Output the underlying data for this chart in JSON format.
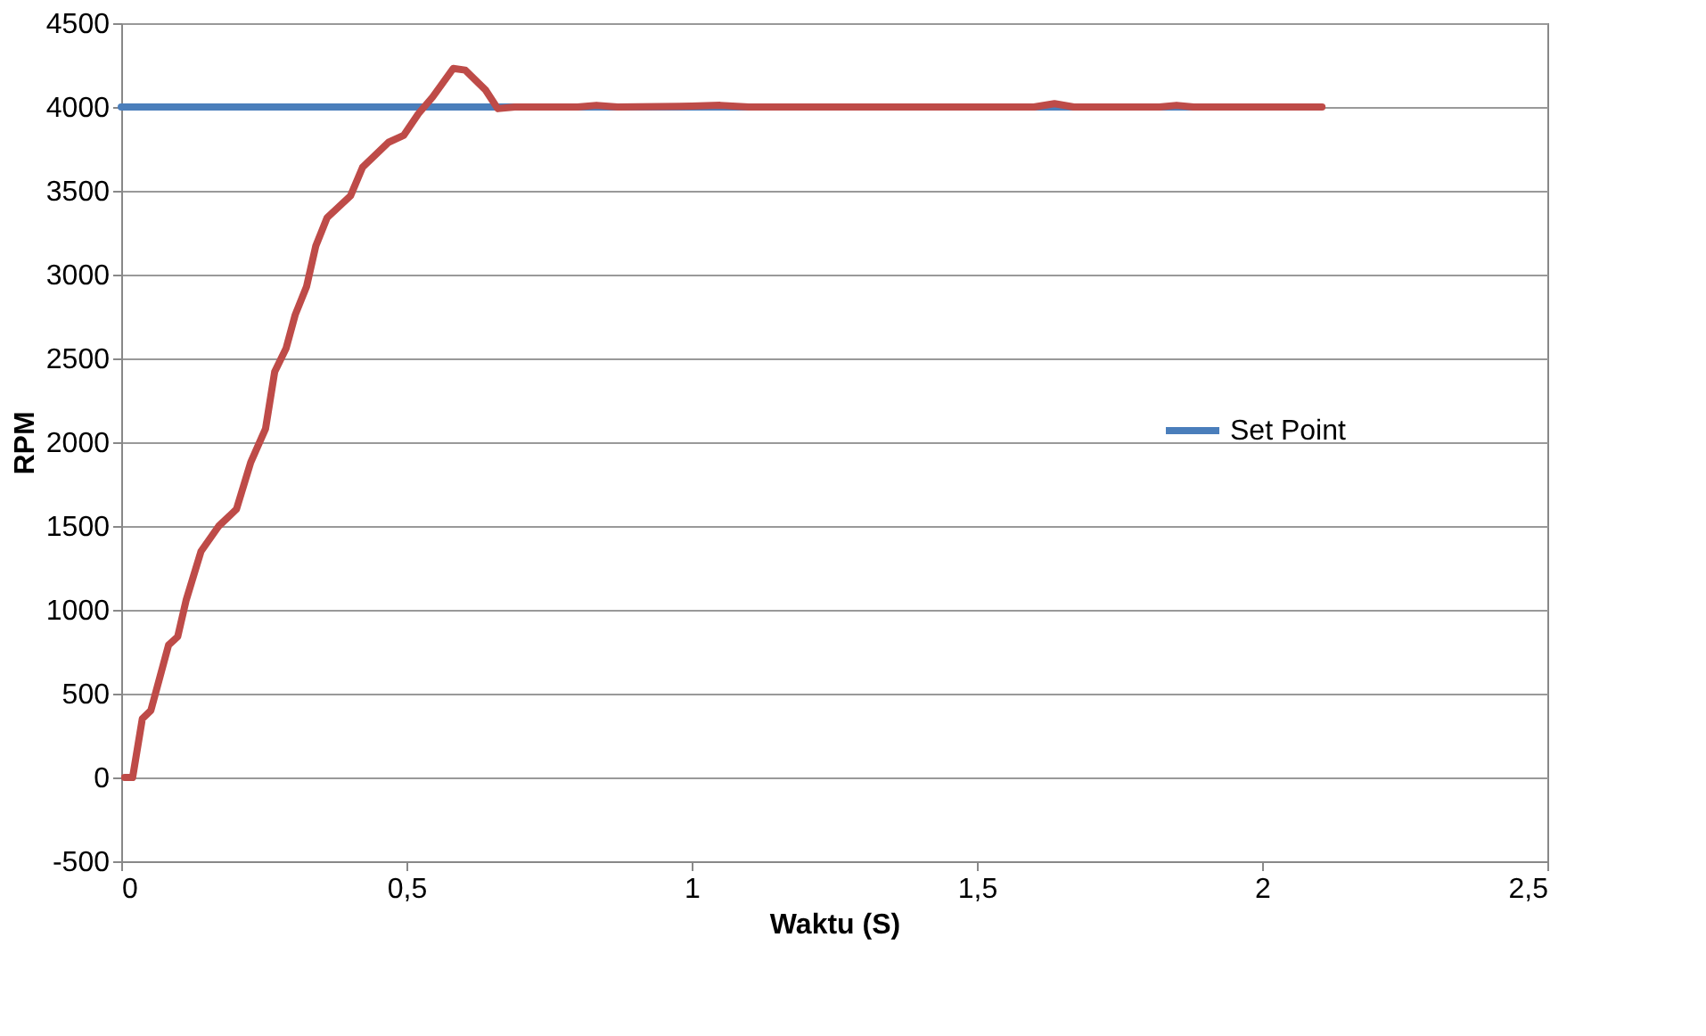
{
  "chart_data": {
    "type": "line",
    "xlabel": "Waktu (S)",
    "ylabel": "RPM",
    "xlim": [
      0,
      2.5
    ],
    "ylim": [
      -500,
      4500
    ],
    "xticks": [
      0,
      {
        "value": 0.5,
        "label": "0,5"
      },
      1,
      {
        "value": 1.5,
        "label": "1,5"
      },
      2,
      {
        "value": 2.5,
        "label": "2,5"
      }
    ],
    "yticks": [
      -500,
      0,
      500,
      1000,
      1500,
      2000,
      2500,
      3000,
      3500,
      4000,
      4500
    ],
    "grid": "y",
    "legend": "right",
    "line_style": "solid",
    "marker": "none",
    "series": [
      {
        "name": "Set Point",
        "color": "#4a7ebb",
        "x": [
          0,
          2.1
        ],
        "values": [
          4000,
          4000
        ]
      },
      {
        "color": "#be4b48",
        "x": [
          0.006,
          0.02,
          0.037,
          0.052,
          0.083,
          0.099,
          0.114,
          0.14,
          0.171,
          0.202,
          0.227,
          0.253,
          0.269,
          0.289,
          0.305,
          0.325,
          0.341,
          0.361,
          0.402,
          0.423,
          0.469,
          0.495,
          0.521,
          0.546,
          0.582,
          0.603,
          0.639,
          0.66,
          0.69,
          0.8,
          0.833,
          0.87,
          1.0,
          1.05,
          1.1,
          1.6,
          1.636,
          1.67,
          1.82,
          1.85,
          1.88,
          2.105
        ],
        "values": [
          0,
          0,
          350,
          400,
          790,
          840,
          1060,
          1350,
          1500,
          1600,
          1880,
          2080,
          2420,
          2560,
          2760,
          2930,
          3170,
          3340,
          3470,
          3640,
          3790,
          3830,
          3960,
          4060,
          4230,
          4220,
          4100,
          3990,
          4000,
          4000,
          4010,
          4000,
          4005,
          4010,
          4000,
          4000,
          4020,
          4000,
          4000,
          4010,
          4000,
          4000
        ]
      }
    ]
  }
}
